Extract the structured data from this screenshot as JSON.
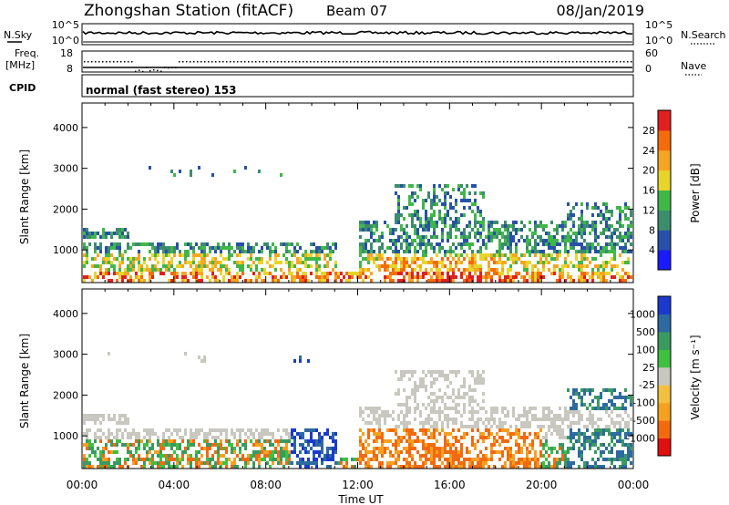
{
  "header": {
    "station": "Zhongshan Station (fitACF)",
    "beam": "Beam 07",
    "date": "08/Jan/2019"
  },
  "top_panels": {
    "nsky_label": "N.Sky",
    "nsky_ticks": [
      "10^5",
      "10^0"
    ],
    "nsearch_label": "N.Search",
    "nsearch_ticks": [
      "10^5",
      "10^0"
    ],
    "freq_label_1": "Freq.",
    "freq_label_2": "[MHz]",
    "freq_ticks": [
      "18",
      "8"
    ],
    "nave_label": "Nave",
    "nave_ticks": [
      "60",
      "0"
    ],
    "cpid_label": "CPID",
    "cpid_text": "normal (fast stereo) 153"
  },
  "colors": {
    "power_scale": [
      "#1a1aff",
      "#2850a8",
      "#3c8c6e",
      "#3fb848",
      "#e8d52c",
      "#f5a623",
      "#f56c0c",
      "#e02020"
    ],
    "velocity_scale": [
      "#e01010",
      "#f26a10",
      "#f5a020",
      "#f2c040",
      "#c8c8c0",
      "#3fc040",
      "#3a9a60",
      "#2c6aa0",
      "#1a3acc"
    ]
  },
  "chart_data": [
    {
      "type": "heatmap",
      "name": "power",
      "ylabel": "Slant Range [km]",
      "y_ticks": [
        "1000",
        "2000",
        "3000",
        "4000"
      ],
      "ylim": [
        200,
        4600
      ],
      "xlim": [
        "00:00",
        "24:00"
      ],
      "colorbar_label": "Power [dB]",
      "colorbar_ticks": [
        "28",
        "24",
        "20",
        "16",
        "12",
        "8",
        "4"
      ],
      "colorbar_range": [
        0,
        32
      ]
    },
    {
      "type": "heatmap",
      "name": "velocity",
      "ylabel": "Slant Range [km]",
      "y_ticks": [
        "1000",
        "2000",
        "3000",
        "4000"
      ],
      "ylim": [
        200,
        4600
      ],
      "xlim": [
        "00:00",
        "24:00"
      ],
      "colorbar_label": "Velocity [m s⁻¹]",
      "colorbar_ticks": [
        "1000",
        "500",
        "100",
        "25",
        "-25",
        "-100",
        "-500",
        "-1000"
      ]
    }
  ],
  "x_axis": {
    "ticks": [
      "00:00",
      "04:00",
      "08:00",
      "12:00",
      "16:00",
      "20:00",
      "00:00"
    ],
    "label": "Time UT"
  }
}
